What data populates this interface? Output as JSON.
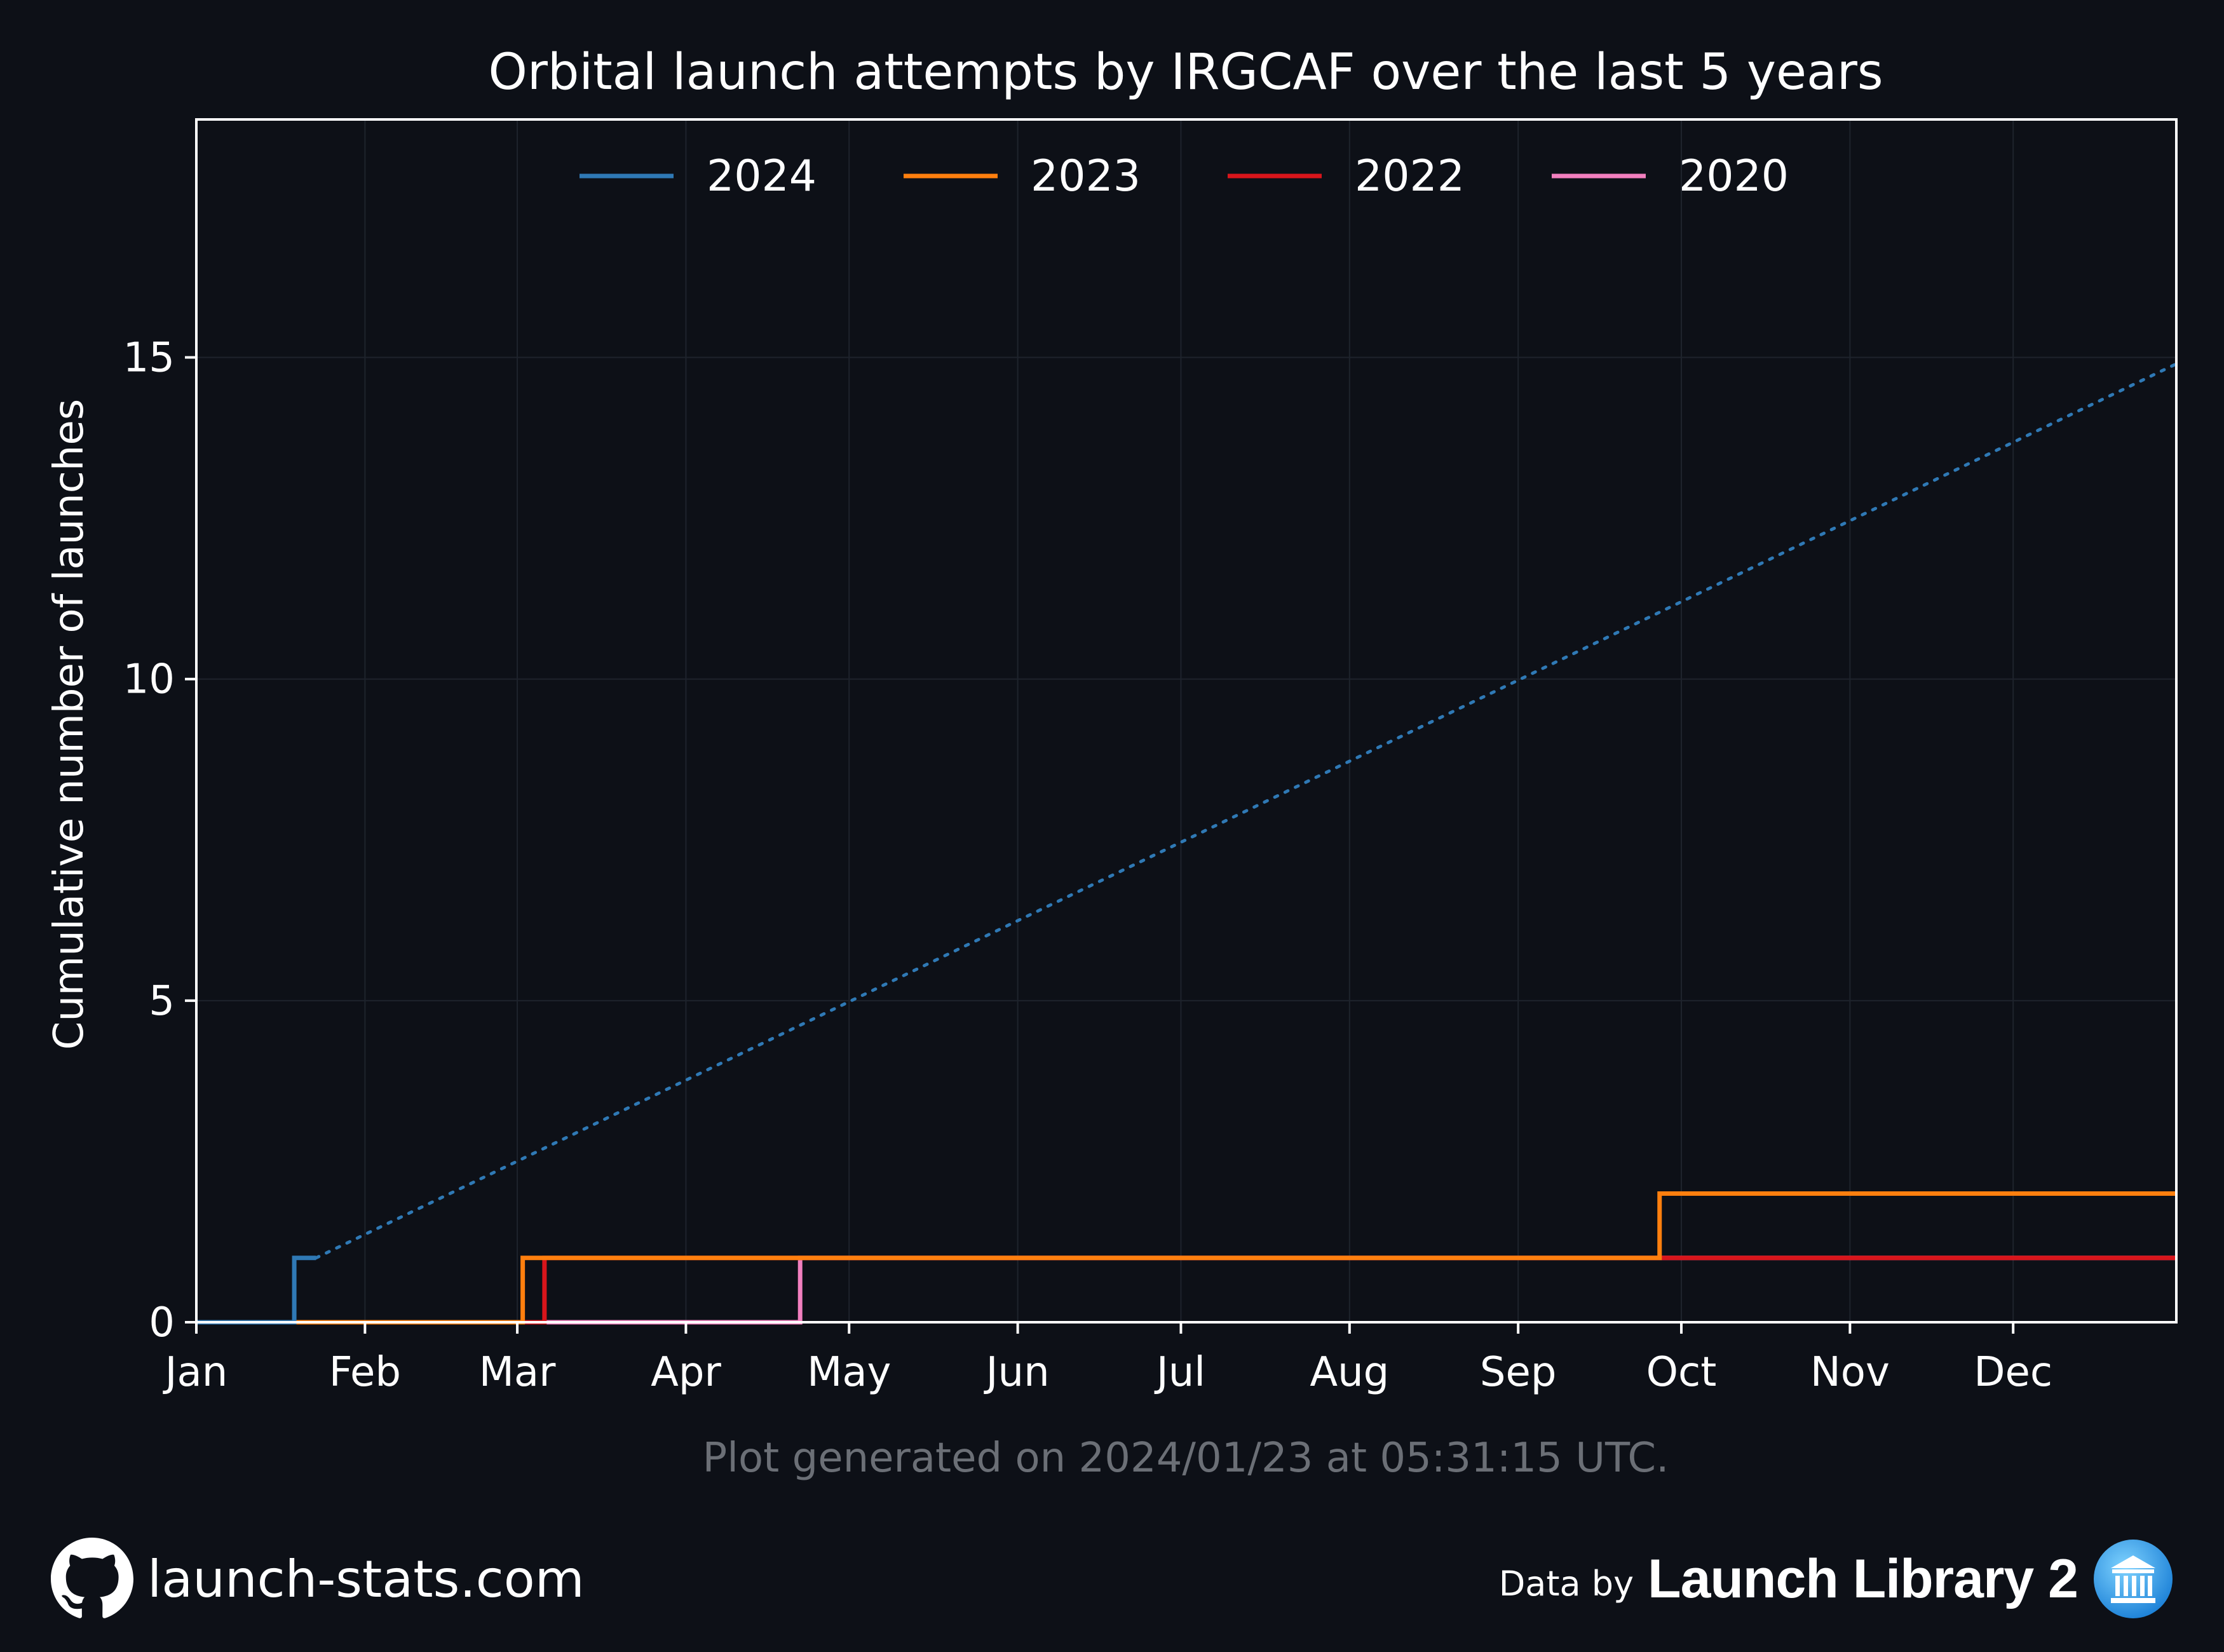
{
  "chart_data": {
    "type": "line",
    "title": "Orbital launch attempts by IRGCAF over the last 5 years",
    "ylabel": "Cumulative number of launches",
    "xlabel": "",
    "x_ticks": [
      "Jan",
      "Feb",
      "Mar",
      "Apr",
      "May",
      "Jun",
      "Jul",
      "Aug",
      "Sep",
      "Oct",
      "Nov",
      "Dec"
    ],
    "y_ticks": [
      0,
      5,
      10,
      15
    ],
    "ylim": [
      0,
      18.7
    ],
    "xlim": [
      "Jan 1",
      "Dec 31"
    ],
    "grid": true,
    "legend_position": "top",
    "series": [
      {
        "name": "2024",
        "color": "#2f79b5",
        "style": "step",
        "points": [
          [
            "Jan 1",
            0
          ],
          [
            "Jan 19",
            1
          ],
          [
            "Jan 23",
            1
          ]
        ],
        "projection": {
          "style": "dotted",
          "points": [
            [
              "Jan 23",
              1
            ],
            [
              "Dec 31",
              14.9
            ]
          ]
        }
      },
      {
        "name": "2023",
        "color": "#ff7f0e",
        "style": "step",
        "points": [
          [
            "Jan 1",
            0
          ],
          [
            "Mar 2",
            1
          ],
          [
            "Sep 27",
            2
          ],
          [
            "Dec 31",
            2
          ]
        ]
      },
      {
        "name": "2022",
        "color": "#d8151b",
        "style": "step",
        "points": [
          [
            "Jan 1",
            0
          ],
          [
            "Mar 6",
            1
          ],
          [
            "Dec 31",
            1
          ]
        ]
      },
      {
        "name": "2020",
        "color": "#f27fbf",
        "style": "step",
        "points": [
          [
            "Jan 1",
            0
          ],
          [
            "Apr 22",
            1
          ],
          [
            "Dec 31",
            1
          ]
        ]
      }
    ]
  },
  "footnote": "Plot generated on 2024/01/23 at 05:31:15 UTC.",
  "footer": {
    "site": "launch-stats.com",
    "site_icon": "github-icon",
    "data_by": "Data by",
    "source": "Launch Library 2",
    "source_icon": "launch-library-logo-icon"
  }
}
